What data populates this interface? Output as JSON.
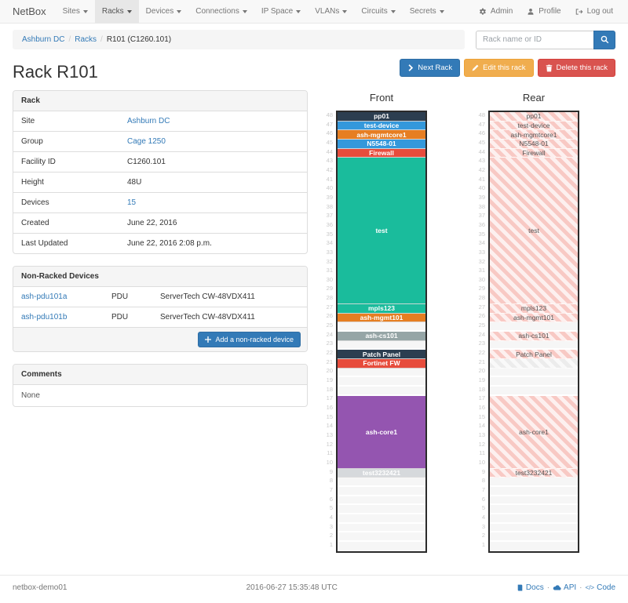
{
  "nav": {
    "brand": "NetBox",
    "items": [
      {
        "label": "Sites"
      },
      {
        "label": "Racks"
      },
      {
        "label": "Devices"
      },
      {
        "label": "Connections"
      },
      {
        "label": "IP Space"
      },
      {
        "label": "VLANs"
      },
      {
        "label": "Circuits"
      },
      {
        "label": "Secrets"
      }
    ],
    "right": {
      "admin": "Admin",
      "profile": "Profile",
      "logout": "Log out"
    }
  },
  "breadcrumb": {
    "items": [
      "Ashburn DC",
      "Racks",
      "R101 (C1260.101)"
    ]
  },
  "search": {
    "placeholder": "Rack name or ID"
  },
  "page": {
    "title": "Rack R101"
  },
  "actions": {
    "next": "Next Rack",
    "edit": "Edit this rack",
    "delete": "Delete this rack"
  },
  "rack_panel": {
    "title": "Rack",
    "rows": [
      {
        "label": "Site",
        "value": "Ashburn DC",
        "link": true
      },
      {
        "label": "Group",
        "value": "Cage 1250",
        "link": true
      },
      {
        "label": "Facility ID",
        "value": "C1260.101",
        "link": false
      },
      {
        "label": "Height",
        "value": "48U",
        "link": false
      },
      {
        "label": "Devices",
        "value": "15",
        "link": true
      },
      {
        "label": "Created",
        "value": "June 22, 2016",
        "link": false
      },
      {
        "label": "Last Updated",
        "value": "June 22, 2016 2:08 p.m.",
        "link": false
      }
    ]
  },
  "non_racked": {
    "title": "Non-Racked Devices",
    "rows": [
      {
        "name": "ash-pdu101a",
        "type": "PDU",
        "model": "ServerTech CW-48VDX411"
      },
      {
        "name": "ash-pdu101b",
        "type": "PDU",
        "model": "ServerTech CW-48VDX411"
      }
    ],
    "add_label": "Add a non-racked device"
  },
  "comments": {
    "title": "Comments",
    "body": "None"
  },
  "elevations": {
    "units_total": 48,
    "front": {
      "title": "Front",
      "segments": [
        {
          "label": "pp01",
          "units": 1,
          "bg": "#2c3e50",
          "fg": "#fff"
        },
        {
          "label": "test-device",
          "units": 1,
          "bg": "#3498db",
          "fg": "#fff"
        },
        {
          "label": "ash-mgmtcore1",
          "units": 1,
          "bg": "#e67e22",
          "fg": "#fff"
        },
        {
          "label": "N5548-01",
          "units": 1,
          "bg": "#3498db",
          "fg": "#fff"
        },
        {
          "label": "Firewall",
          "units": 1,
          "bg": "#e74c3c",
          "fg": "#fff"
        },
        {
          "label": "test",
          "units": 16,
          "bg": "#1abc9c",
          "fg": "#fff"
        },
        {
          "label": "mpls123",
          "units": 1,
          "bg": "#1abc9c",
          "fg": "#fff"
        },
        {
          "label": "ash-mgmt101",
          "units": 1,
          "bg": "#e67e22",
          "fg": "#fff"
        },
        {
          "units": 1
        },
        {
          "label": "ash-cs101",
          "units": 1,
          "bg": "#95a5a6",
          "fg": "#fff"
        },
        {
          "units": 1
        },
        {
          "label": "Patch Panel",
          "units": 1,
          "bg": "#2c3e50",
          "fg": "#fff"
        },
        {
          "label": "Fortinet FW",
          "units": 1,
          "bg": "#e74c3c",
          "fg": "#fff"
        },
        {
          "units": 1
        },
        {
          "units": 1
        },
        {
          "units": 1
        },
        {
          "label": "ash-core1",
          "units": 8,
          "bg": "#9455b0",
          "fg": "#fff"
        },
        {
          "label": "test3232421",
          "units": 1,
          "bg": "#d6d9dc",
          "fg": "#fff"
        },
        {
          "units": 1
        },
        {
          "units": 1
        },
        {
          "units": 1
        },
        {
          "units": 1
        },
        {
          "units": 1
        },
        {
          "units": 1
        },
        {
          "units": 1
        },
        {
          "units": 1
        }
      ]
    },
    "rear": {
      "title": "Rear",
      "segments": [
        {
          "label": "pp01",
          "units": 1,
          "hatch": "pink"
        },
        {
          "label": "test-device",
          "units": 1,
          "hatch": "pink"
        },
        {
          "label": "ash-mgmtcore1",
          "units": 1,
          "hatch": "pink"
        },
        {
          "label": "N5548-01",
          "units": 1,
          "hatch": "pink"
        },
        {
          "label": "Firewall",
          "units": 1,
          "hatch": "pink"
        },
        {
          "label": "test",
          "units": 16,
          "hatch": "pink"
        },
        {
          "label": "mpls123",
          "units": 1,
          "hatch": "pink"
        },
        {
          "label": "ash-mgmt101",
          "units": 1,
          "hatch": "pink"
        },
        {
          "units": 1
        },
        {
          "label": "ash-cs101",
          "units": 1,
          "hatch": "pink"
        },
        {
          "units": 1
        },
        {
          "label": "Patch Panel",
          "units": 1,
          "hatch": "pink"
        },
        {
          "label": "",
          "units": 1,
          "hatch": "gray"
        },
        {
          "units": 1
        },
        {
          "units": 1
        },
        {
          "units": 1
        },
        {
          "label": "ash-core1",
          "units": 8,
          "hatch": "pink"
        },
        {
          "label": "test3232421",
          "units": 1,
          "hatch": "pink"
        },
        {
          "units": 1
        },
        {
          "units": 1
        },
        {
          "units": 1
        },
        {
          "units": 1
        },
        {
          "units": 1
        },
        {
          "units": 1
        },
        {
          "units": 1
        },
        {
          "units": 1
        }
      ]
    }
  },
  "colors": {
    "accent": "#337ab7",
    "warning": "#f0ad4e",
    "danger": "#d9534f"
  },
  "footer": {
    "hostname": "netbox-demo01",
    "timestamp": "2016-06-27 15:35:48 UTC",
    "links": {
      "docs": "Docs",
      "api": "API",
      "code": "Code"
    }
  }
}
